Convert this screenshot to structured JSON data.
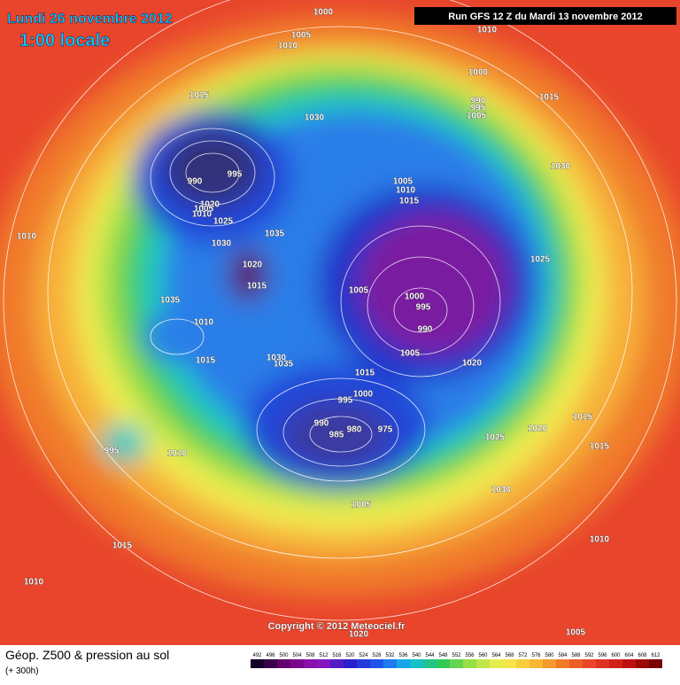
{
  "header": {
    "date": "Lundi 26 novembre 2012",
    "time": "1:00 locale",
    "run": "Run GFS 12 Z du Mardi 13 novembre 2012"
  },
  "copyright": "Copyright © 2012 Meteociel.fr",
  "legend": {
    "title": "Géop. Z500 & pression au sol",
    "lead": "(+ 300h)",
    "scale": [
      492,
      496,
      500,
      504,
      508,
      512,
      516,
      520,
      524,
      528,
      532,
      536,
      540,
      544,
      548,
      552,
      556,
      560,
      564,
      568,
      572,
      576,
      580,
      584,
      588,
      592,
      596,
      600,
      604,
      608,
      612
    ]
  },
  "isobar_labels": [
    1000,
    1005,
    1010,
    1010,
    1000,
    990,
    995,
    1005,
    1015,
    1015,
    1030,
    990,
    995,
    1030,
    1005,
    1010,
    1015,
    1020,
    1005,
    1010,
    1025,
    1010,
    1035,
    1030,
    1020,
    1015,
    1025,
    1005,
    1000,
    995,
    990,
    1035,
    1010,
    1005,
    1020,
    1015,
    1030,
    1035,
    1015,
    1000,
    995,
    990,
    985,
    980,
    975,
    1015,
    1020,
    1025,
    1015,
    995,
    1010,
    1030,
    1005,
    1010,
    1015,
    1010,
    1020,
    1005
  ]
}
